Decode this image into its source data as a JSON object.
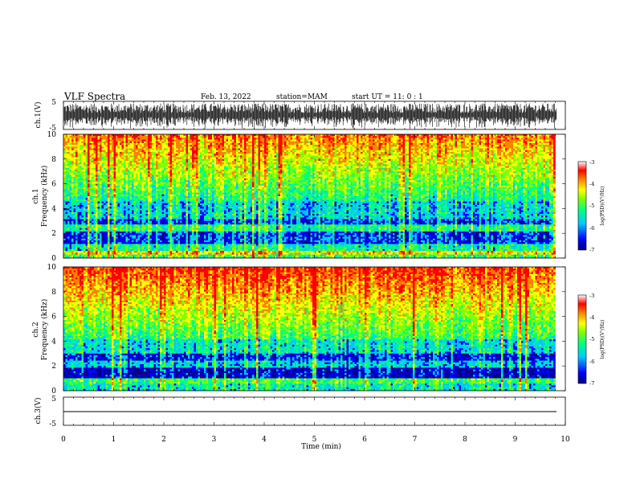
{
  "header": {
    "title": "VLF Spectra",
    "date": "Feb. 13, 2022",
    "station": "station=MAM",
    "start": "start UT =  11: 0  : 1"
  },
  "chart_data": [
    {
      "type": "line",
      "panel": "ch1-waveform",
      "ylabel": "ch.1(V)",
      "ylim": [
        -5,
        5
      ],
      "yticks": [
        "5",
        "-5"
      ],
      "xlim": [
        0,
        10
      ]
    },
    {
      "type": "heatmap",
      "panel": "ch1-spectrogram",
      "ylabel_top": "ch.1",
      "ylabel": "Frequency (kHz)",
      "ylim": [
        0,
        10
      ],
      "yticks": [
        "0",
        "2",
        "4",
        "6",
        "8",
        "10"
      ],
      "xlim": [
        0,
        10
      ],
      "colorbar": {
        "label": "log(PSD)(V²/Hz)",
        "range": [
          -7,
          -3
        ],
        "ticks": [
          "-3",
          "-4",
          "-5",
          "-6",
          "-7"
        ]
      },
      "colors": [
        "#00008b",
        "#0000ff",
        "#00c8ff",
        "#00ff80",
        "#80ff00",
        "#ffff00",
        "#ff8000",
        "#ff0000",
        "#ffffff"
      ]
    },
    {
      "type": "heatmap",
      "panel": "ch2-spectrogram",
      "ylabel_top": "ch.2",
      "ylabel": "Frequency (kHz)",
      "ylim": [
        0,
        10
      ],
      "yticks": [
        "0",
        "2",
        "4",
        "6",
        "8",
        "10"
      ],
      "xlim": [
        0,
        10
      ],
      "colorbar": {
        "label": "log(PSD)(V²/Hz)",
        "range": [
          -7,
          -3
        ],
        "ticks": [
          "-3",
          "-4",
          "-5",
          "-6",
          "-7"
        ]
      }
    },
    {
      "type": "line",
      "panel": "ch3-waveform",
      "ylabel": "ch.3(V)",
      "ylim": [
        -5,
        5
      ],
      "yticks": [
        "5",
        "-5"
      ],
      "xlim": [
        0,
        10
      ],
      "xlabel": "Time (min)",
      "xticks": [
        "0",
        "1",
        "2",
        "3",
        "4",
        "5",
        "6",
        "7",
        "8",
        "9",
        "10"
      ]
    }
  ]
}
